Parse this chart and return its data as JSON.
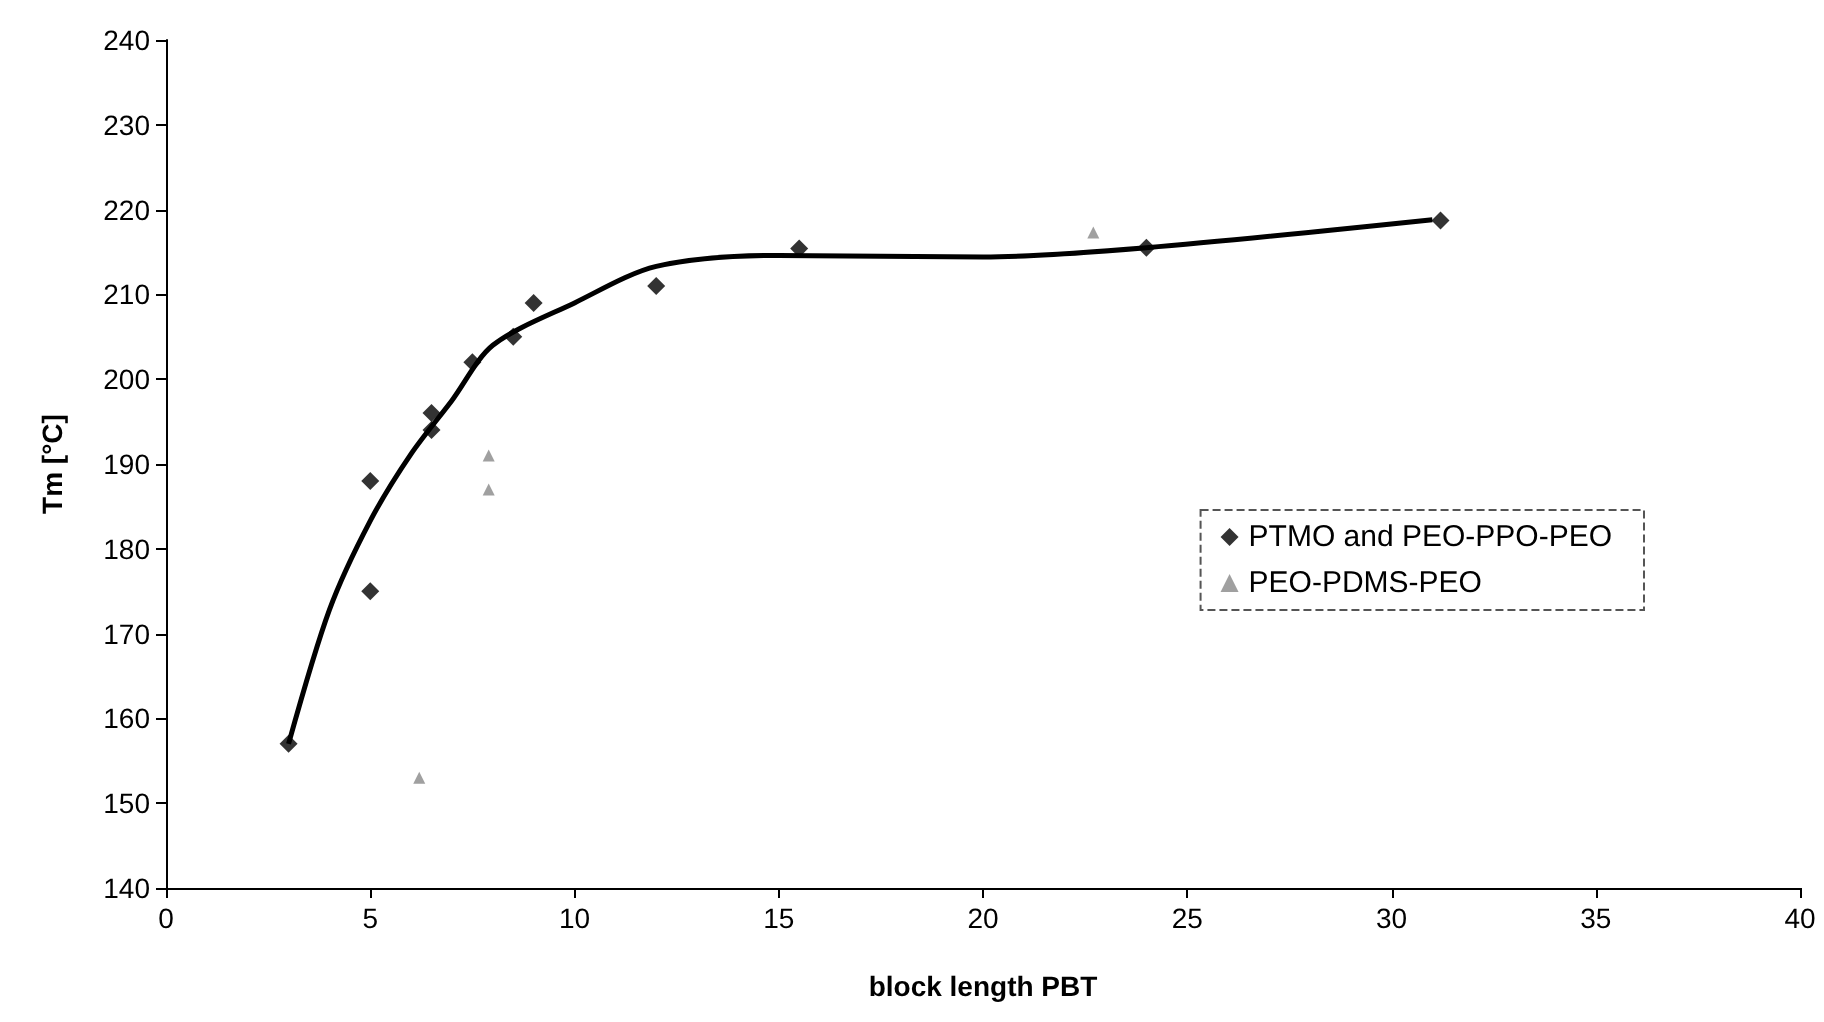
{
  "chart_data": {
    "type": "scatter",
    "xlabel": "block length PBT",
    "ylabel": "Tm [°C]",
    "xlim": [
      0,
      40
    ],
    "xticks": [
      0,
      5,
      10,
      15,
      20,
      25,
      30,
      35,
      40
    ],
    "ylim": [
      140,
      240
    ],
    "yticks": [
      140,
      150,
      160,
      170,
      180,
      190,
      200,
      210,
      220,
      230,
      240
    ],
    "grid": false,
    "legend": "right",
    "series": [
      {
        "name": "PTMO and PEO-PPO-PEO",
        "marker": "diamond",
        "color": "#000000",
        "x": [
          3,
          5,
          5,
          6.5,
          6.5,
          7.5,
          8.5,
          9,
          12,
          15.5,
          24,
          31.2
        ],
        "values": [
          157,
          188,
          175,
          196,
          194,
          202,
          205,
          209,
          211,
          215.4,
          215.5,
          218.7
        ]
      },
      {
        "name": "PEO-PDMS-PEO",
        "marker": "triangle",
        "color": "#888888",
        "x": [
          7.9,
          7.9,
          6.2,
          22.7
        ],
        "values": [
          191,
          187,
          153,
          217.3
        ]
      },
      {
        "type": "line",
        "marker": "none",
        "color": "#000000",
        "x": [
          3,
          4,
          5,
          6,
          7,
          8,
          10,
          12,
          15,
          20,
          24,
          31
        ],
        "values": [
          157,
          172.8,
          183.3,
          191.2,
          197.5,
          204,
          209,
          213.3,
          214.6,
          214.4,
          215.5,
          218.8
        ]
      }
    ]
  }
}
